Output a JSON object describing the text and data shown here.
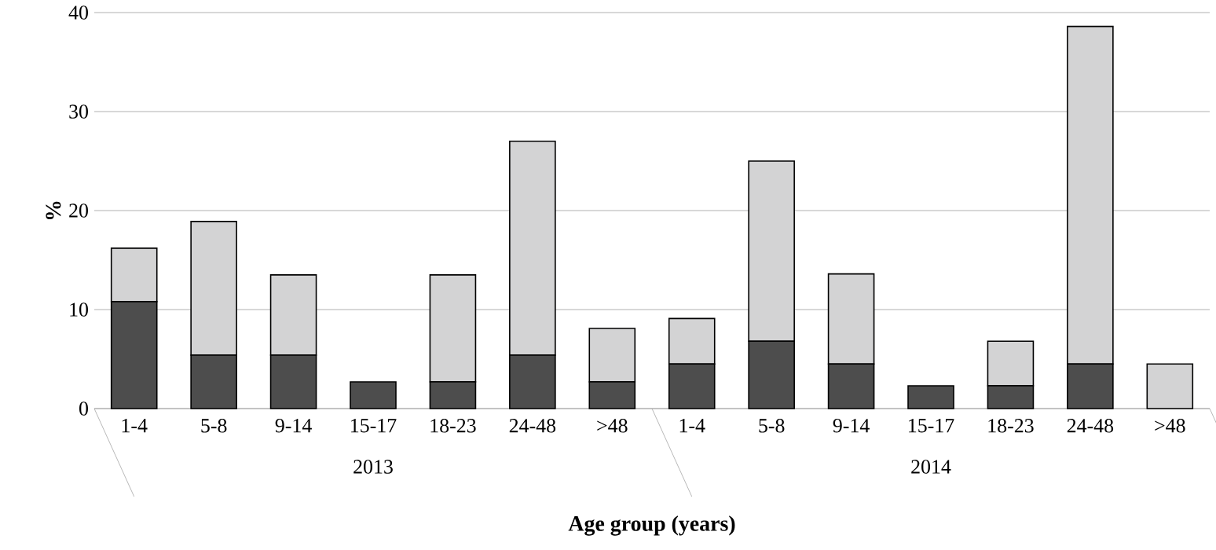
{
  "chart_data": {
    "type": "bar",
    "stacked": true,
    "categories": [
      "1-4",
      "5-8",
      "9-14",
      "15-17",
      "18-23",
      "24-48",
      ">48",
      "1-4",
      "5-8",
      "9-14",
      "15-17",
      "18-23",
      "24-48",
      ">48"
    ],
    "series": [
      {
        "color": "#4d4d4d",
        "values": [
          10.8,
          5.4,
          5.4,
          2.7,
          2.7,
          5.4,
          2.7,
          4.5,
          6.8,
          4.5,
          2.3,
          2.3,
          4.5,
          0
        ]
      },
      {
        "color": "#d3d3d4",
        "values": [
          5.4,
          13.5,
          8.1,
          0,
          10.8,
          21.6,
          5.4,
          4.6,
          18.2,
          9.1,
          0,
          4.5,
          34.1,
          4.5
        ]
      }
    ],
    "ylim": [
      0,
      40
    ],
    "yticks": [
      0,
      10,
      20,
      30,
      40
    ],
    "grid": "y",
    "ylabel": "%",
    "xlabel": "Age group (years)",
    "annotations": [
      "2013",
      "2014"
    ]
  }
}
